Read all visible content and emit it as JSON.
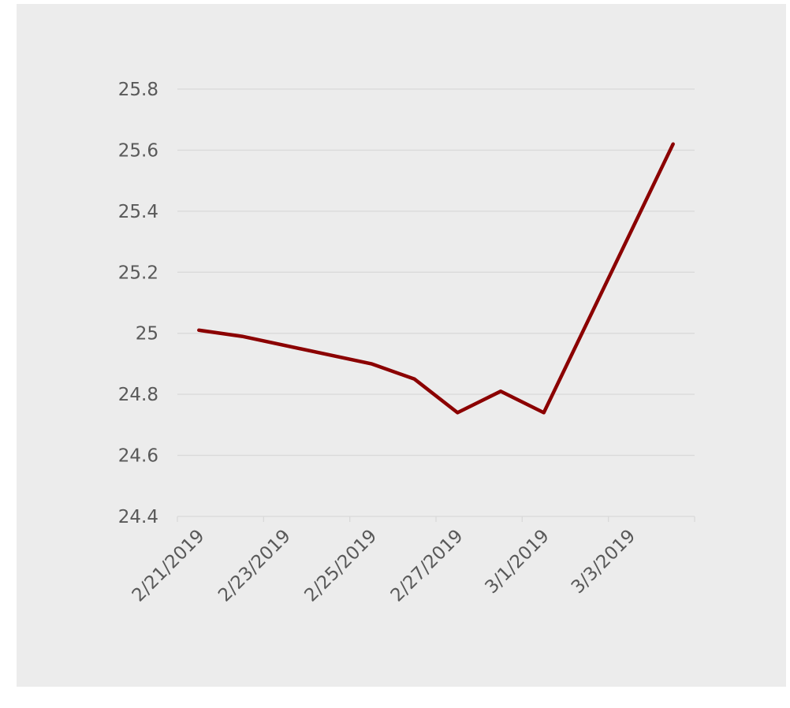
{
  "chart_data": {
    "type": "line",
    "title": "",
    "xlabel": "",
    "ylabel": "",
    "x_dates": [
      "2019-02-21",
      "2019-02-22",
      "2019-02-25",
      "2019-02-26",
      "2019-02-27",
      "2019-02-28",
      "2019-03-01",
      "2019-03-04"
    ],
    "x_tick_labels": [
      "2/21/2019",
      "2/23/2019",
      "2/25/2019",
      "2/27/2019",
      "3/1/2019",
      "3/3/2019"
    ],
    "x_tick_dates": [
      "2019-02-21",
      "2019-02-23",
      "2019-02-25",
      "2019-02-27",
      "2019-03-01",
      "2019-03-03"
    ],
    "xlim_dates": [
      "2019-02-21",
      "2019-03-05"
    ],
    "ylim": [
      24.4,
      25.8
    ],
    "y_ticks": [
      24.4,
      24.6,
      24.8,
      25,
      25.2,
      25.4,
      25.6,
      25.8
    ],
    "y_tick_labels": [
      "24.4",
      "24.6",
      "24.8",
      "25",
      "25.2",
      "25.4",
      "25.6",
      "25.8"
    ],
    "grid": true,
    "series": [
      {
        "values": [
          25.01,
          24.99,
          24.9,
          24.85,
          24.74,
          24.81,
          24.74,
          25.62
        ],
        "color": "#8b0000"
      }
    ]
  }
}
